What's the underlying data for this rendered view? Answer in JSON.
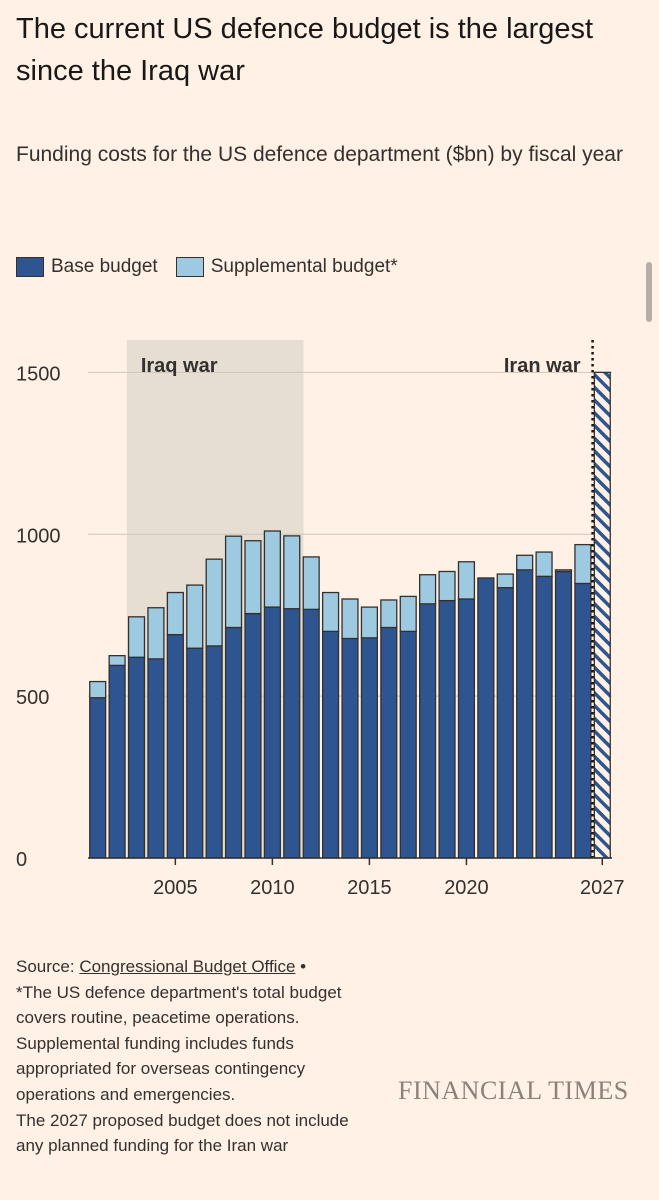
{
  "title": "The current US defence budget is the largest since the Iraq war",
  "subtitle": "Funding costs for the US defence department ($bn) by fiscal year",
  "legend": {
    "base": "Base budget",
    "supplemental": "Supplemental budget*"
  },
  "colors": {
    "base": "#2E558F",
    "supplemental": "#9ECAE1",
    "shade": "#E6DDD3",
    "outline": "#33302E",
    "background": "#FFF1E5"
  },
  "footer": {
    "source_prefix": "Source: ",
    "source_link": "Congressional Budget Office",
    "source_suffix": " •",
    "note": "*The US defence department's total budget covers routine, peacetime operations. Supplemental funding includes funds appropriated for overseas contingency operations and emergencies.",
    "note2": "The 2027 proposed budget does not include any planned funding for the Iran war"
  },
  "brand": "FINANCIAL TIMES",
  "chart_data": {
    "type": "bar",
    "stacked": true,
    "x": [
      2001,
      2002,
      2003,
      2004,
      2005,
      2006,
      2007,
      2008,
      2009,
      2010,
      2011,
      2012,
      2013,
      2014,
      2015,
      2016,
      2017,
      2018,
      2019,
      2020,
      2021,
      2022,
      2023,
      2024,
      2025,
      2026
    ],
    "series": [
      {
        "name": "Base budget",
        "values": [
          495,
          595,
          620,
          615,
          690,
          648,
          655,
          712,
          755,
          775,
          770,
          768,
          700,
          678,
          680,
          712,
          700,
          785,
          795,
          800,
          865,
          835,
          890,
          870,
          885,
          848
        ]
      },
      {
        "name": "Supplemental budget*",
        "values": [
          50,
          30,
          125,
          158,
          130,
          195,
          268,
          282,
          225,
          235,
          225,
          162,
          120,
          122,
          95,
          85,
          108,
          90,
          90,
          115,
          0,
          42,
          45,
          75,
          5,
          120
        ]
      }
    ],
    "proposed": {
      "x": 2027,
      "value": 1500
    },
    "xticks": [
      2005,
      2010,
      2015,
      2020,
      2027
    ],
    "yticks": [
      0,
      500,
      1000,
      1500
    ],
    "ylim": [
      0,
      1600
    ],
    "xlim": [
      2000.5,
      2027.5
    ],
    "annotations": [
      {
        "label": "Iraq war",
        "type": "shaded",
        "from": 2003,
        "to": 2011.6
      },
      {
        "label": "Iran war",
        "type": "vline",
        "at": 2026.5
      }
    ],
    "grid": true
  }
}
